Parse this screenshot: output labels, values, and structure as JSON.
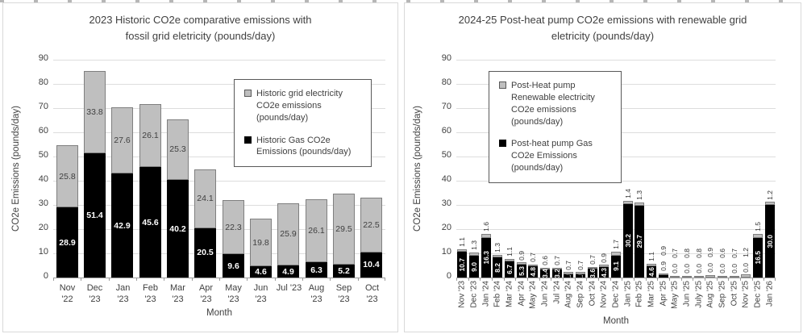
{
  "page_background": "#ffffff",
  "chart_data": [
    {
      "type": "bar",
      "stacked": true,
      "title_lines": [
        "2023 Historic CO2e comparative emissions with",
        "fossil grid eletricity (pounds/day)"
      ],
      "ylabel": "CO2e Emissions (pounds/day)",
      "xlabel": "Month",
      "ylim": [
        0,
        90
      ],
      "ytick_step": 10,
      "grid": true,
      "legend_position": "inside-top-right",
      "x_tick_rotation": 0,
      "categories": [
        "Nov '22",
        "Dec '23",
        "Jan '23",
        "Feb '23",
        "Mar '23",
        "Apr '23",
        "May '23",
        "Jun '23",
        "Jul '23",
        "Aug '23",
        "Sep '23",
        "Oct '23"
      ],
      "category_lines": [
        [
          "Nov",
          "'22"
        ],
        [
          "Dec",
          "'23"
        ],
        [
          "Jan",
          "'23"
        ],
        [
          "Feb",
          "'23"
        ],
        [
          "Mar",
          "'23"
        ],
        [
          "Apr",
          "'23"
        ],
        [
          "May",
          "'23"
        ],
        [
          "Jun",
          "'23"
        ],
        [
          "Jul '23"
        ],
        [
          "Aug",
          "'23"
        ],
        [
          "Sep",
          "'23"
        ],
        [
          "Oct",
          "'23"
        ]
      ],
      "series": [
        {
          "name": "Historic Gas CO2e Emissions (pounds/day)",
          "color": "#000000",
          "label_color": "#ffffff",
          "values": [
            28.9,
            51.4,
            42.9,
            45.6,
            40.2,
            20.5,
            9.6,
            4.6,
            4.9,
            6.3,
            5.2,
            10.4
          ]
        },
        {
          "name": "Historic grid electricity CO2e emissions (pounds/day)",
          "color": "#bfbfbf",
          "label_color": "#404040",
          "values": [
            25.8,
            33.8,
            27.6,
            26.1,
            25.3,
            24.1,
            22.3,
            19.8,
            25.9,
            26.1,
            29.5,
            22.5
          ]
        }
      ],
      "legend": [
        {
          "label": "Historic grid electricity CO2e emissions (pounds/day)",
          "color": "#bfbfbf"
        },
        {
          "label": "Historic Gas CO2e Emissions (pounds/day)",
          "color": "#000000"
        }
      ]
    },
    {
      "type": "bar",
      "stacked": true,
      "title_lines": [
        "2024-25 Post-heat pump CO2e emissions with renewable grid",
        "eletricity  (pounds/day)"
      ],
      "ylabel": "CO2e Emissions (pounds/day)",
      "xlabel": "Month",
      "ylim": [
        0,
        90
      ],
      "ytick_step": 10,
      "grid": true,
      "legend_position": "inside-top-left",
      "x_tick_rotation": 90,
      "categories": [
        "Nov '23",
        "Dec '23",
        "Jan '24",
        "Feb '24",
        "Mar '24",
        "Apr '24",
        "May '24",
        "Jun '24",
        "Jul '24",
        "Aug '24",
        "Sep '24",
        "Oct '24",
        "Nov '24",
        "Dec '24",
        "Jan '25",
        "Feb '25",
        "Mar '25",
        "Apr '25",
        "May '25",
        "Jun '25",
        "July '25",
        "Aug '25",
        "Sep '25",
        "Oct '25",
        "Nov '25",
        "Dec '25",
        "Jan '26"
      ],
      "series": [
        {
          "name": "Post-heat pump Gas CO2e Emissions (pounds/day)",
          "color": "#000000",
          "label_color": "#ffffff",
          "values": [
            10.7,
            9.0,
            16.3,
            8.2,
            6.7,
            5.3,
            4.8,
            3.4,
            3.2,
            1.5,
            1.5,
            3.6,
            4.3,
            9.1,
            30.2,
            29.7,
            4.6,
            0.9,
            0.0,
            0.0,
            0.0,
            0.0,
            0.0,
            0.0,
            0.0,
            16.5,
            30.0
          ]
        },
        {
          "name": "Post-Heat pump Renewable electricity CO2e emissions (pounds/day)",
          "color": "#bfbfbf",
          "label_color": "#404040",
          "values": [
            1.1,
            1.3,
            1.6,
            1.3,
            1.1,
            0.9,
            0.7,
            0.6,
            0.7,
            0.7,
            0.7,
            0.7,
            0.9,
            1.7,
            1.4,
            1.3,
            1.1,
            0.9,
            0.7,
            0.8,
            0.8,
            0.9,
            0.6,
            0.7,
            1.2,
            1.5,
            1.2
          ]
        }
      ],
      "legend": [
        {
          "label": "Post-Heat pump Renewable electricity CO2e emissions (pounds/day)",
          "color": "#bfbfbf"
        },
        {
          "label": "Post-heat pump Gas CO2e Emissions (pounds/day)",
          "color": "#000000"
        }
      ]
    }
  ]
}
